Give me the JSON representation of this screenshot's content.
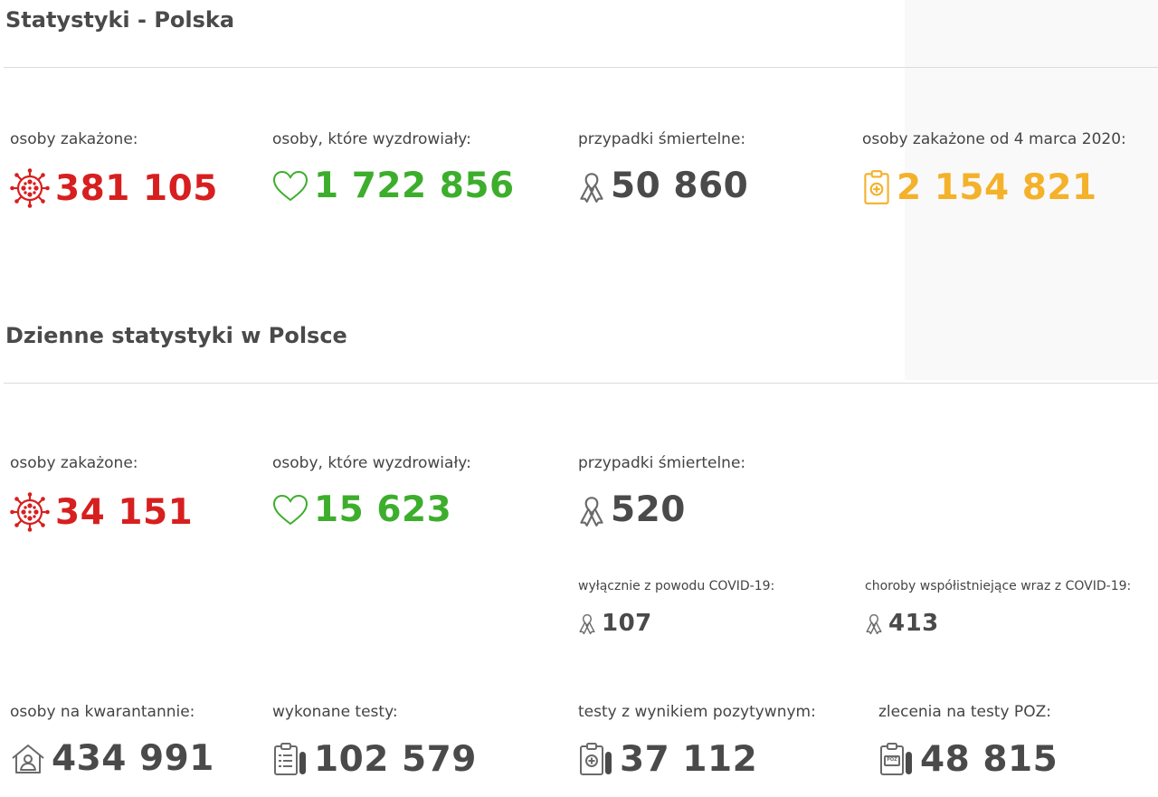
{
  "colors": {
    "infected": "#d71f1f",
    "recovered": "#3cae2c",
    "deaths": "#4a4a4a",
    "total": "#f4b12a"
  },
  "overall": {
    "title": "Statystyki - Polska",
    "infected": {
      "label": "osoby zakażone:",
      "value": "381 105",
      "icon": "virus-icon"
    },
    "recovered": {
      "label": "osoby, które wyzdrowiały:",
      "value": "1 722 856",
      "icon": "heart-icon"
    },
    "deaths": {
      "label": "przypadki śmiertelne:",
      "value": "50 860",
      "icon": "ribbon-icon"
    },
    "total": {
      "label": "osoby zakażone od 4 marca 2020:",
      "value": "2 154 821",
      "icon": "clipboard-plus-icon"
    }
  },
  "daily": {
    "title": "Dzienne statystyki w Polsce",
    "infected": {
      "label": "osoby zakażone:",
      "value": "34 151",
      "icon": "virus-icon"
    },
    "recovered": {
      "label": "osoby, które wyzdrowiały:",
      "value": "15 623",
      "icon": "heart-icon"
    },
    "deaths": {
      "label": "przypadki śmiertelne:",
      "value": "520",
      "icon": "ribbon-icon"
    },
    "deaths_covid_only": {
      "label": "wyłącznie z powodu COVID-19:",
      "value": "107",
      "icon": "ribbon-icon"
    },
    "deaths_comorbid": {
      "label": "choroby współistniejące wraz z COVID-19:",
      "value": "413",
      "icon": "ribbon-icon"
    },
    "quarantine": {
      "label": "osoby na kwarantannie:",
      "value": "434 991",
      "icon": "house-person-icon"
    },
    "tests": {
      "label": "wykonane testy:",
      "value": "102 579",
      "icon": "test-clipboard-icon"
    },
    "positive_tests": {
      "label": "testy z wynikiem pozytywnym:",
      "value": "37 112",
      "icon": "positive-test-icon"
    },
    "poz_orders": {
      "label": "zlecenia na testy POZ:",
      "value": "48 815",
      "icon": "poz-test-icon",
      "icon_text": "POZ"
    }
  }
}
